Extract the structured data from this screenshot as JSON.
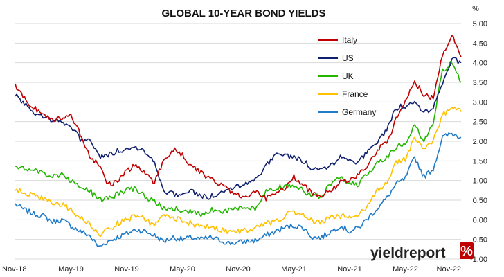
{
  "chart_data": {
    "type": "line",
    "title": "GLOBAL 10-YEAR BOND YIELDS",
    "y_unit": "%",
    "ylim": [
      -1.0,
      5.0
    ],
    "yticks": [
      "5.00",
      "4.50",
      "4.00",
      "3.50",
      "3.00",
      "2.50",
      "2.00",
      "1.50",
      "1.00",
      "0.50",
      "0.00",
      "-0.50",
      "-1.00"
    ],
    "x_tick_labels": [
      "Nov-18",
      "May-19",
      "Nov-19",
      "May-20",
      "Nov-20",
      "May-21",
      "Nov-21",
      "May-22",
      "Nov-22"
    ],
    "grid": "horizontal",
    "legend_position": "top-right",
    "x": [
      "Nov-18",
      "Dec-18",
      "Jan-19",
      "Feb-19",
      "Mar-19",
      "Apr-19",
      "May-19",
      "Jun-19",
      "Jul-19",
      "Aug-19",
      "Sep-19",
      "Oct-19",
      "Nov-19",
      "Dec-19",
      "Jan-20",
      "Feb-20",
      "Mar-20",
      "Apr-20",
      "May-20",
      "Jun-20",
      "Jul-20",
      "Aug-20",
      "Sep-20",
      "Oct-20",
      "Nov-20",
      "Dec-20",
      "Jan-21",
      "Feb-21",
      "Mar-21",
      "Apr-21",
      "May-21",
      "Jun-21",
      "Jul-21",
      "Aug-21",
      "Sep-21",
      "Oct-21",
      "Nov-21",
      "Dec-21",
      "Jan-22",
      "Feb-22",
      "Mar-22",
      "Apr-22",
      "May-22",
      "Jun-22",
      "Jul-22",
      "Aug-22",
      "Sep-22",
      "Oct-22",
      "Nov-22"
    ],
    "series": [
      {
        "name": "Italy",
        "color": "#c00000",
        "values": [
          3.4,
          3.1,
          2.85,
          2.7,
          2.55,
          2.6,
          2.65,
          2.2,
          1.6,
          1.4,
          0.9,
          0.95,
          1.25,
          1.4,
          1.2,
          0.95,
          1.5,
          1.8,
          1.65,
          1.35,
          1.2,
          1.05,
          0.9,
          0.75,
          0.65,
          0.58,
          0.7,
          0.55,
          0.7,
          0.8,
          1.1,
          0.9,
          0.65,
          0.62,
          0.75,
          0.95,
          1.0,
          1.15,
          1.4,
          1.8,
          1.95,
          2.55,
          3.0,
          3.5,
          3.2,
          3.1,
          4.2,
          4.7,
          4.15
        ]
      },
      {
        "name": "US",
        "color": "#0f1f6e",
        "values": [
          3.2,
          2.95,
          2.7,
          2.65,
          2.55,
          2.5,
          2.4,
          2.05,
          2.05,
          1.6,
          1.65,
          1.75,
          1.8,
          1.85,
          1.75,
          1.45,
          0.75,
          0.65,
          0.65,
          0.72,
          0.6,
          0.58,
          0.68,
          0.78,
          0.88,
          0.92,
          1.1,
          1.35,
          1.7,
          1.62,
          1.6,
          1.5,
          1.3,
          1.3,
          1.4,
          1.6,
          1.55,
          1.45,
          1.8,
          1.95,
          2.3,
          2.85,
          2.9,
          3.0,
          2.75,
          2.85,
          3.5,
          4.1,
          4.0
        ]
      },
      {
        "name": "UK",
        "color": "#22b600",
        "values": [
          1.4,
          1.3,
          1.25,
          1.2,
          1.1,
          1.15,
          1.0,
          0.85,
          0.75,
          0.5,
          0.55,
          0.65,
          0.75,
          0.8,
          0.6,
          0.45,
          0.3,
          0.3,
          0.25,
          0.2,
          0.15,
          0.25,
          0.2,
          0.25,
          0.3,
          0.3,
          0.3,
          0.7,
          0.8,
          0.85,
          0.85,
          0.75,
          0.6,
          0.6,
          0.95,
          1.05,
          0.95,
          0.9,
          1.2,
          1.45,
          1.6,
          1.85,
          1.95,
          2.4,
          2.0,
          2.5,
          3.8,
          4.0,
          3.5
        ]
      },
      {
        "name": "France",
        "color": "#ffc000",
        "values": [
          0.75,
          0.7,
          0.6,
          0.55,
          0.4,
          0.4,
          0.25,
          0.05,
          -0.1,
          -0.4,
          -0.25,
          -0.1,
          0.0,
          0.1,
          0.0,
          -0.15,
          0.1,
          0.05,
          0.0,
          -0.1,
          -0.2,
          -0.15,
          -0.25,
          -0.3,
          -0.3,
          -0.25,
          -0.2,
          -0.1,
          -0.05,
          0.1,
          0.2,
          0.1,
          -0.05,
          -0.05,
          0.05,
          0.1,
          0.05,
          0.1,
          0.4,
          0.75,
          0.95,
          1.45,
          1.55,
          2.1,
          1.8,
          2.0,
          2.65,
          2.9,
          2.75
        ]
      },
      {
        "name": "Germany",
        "color": "#1f7ac8",
        "values": [
          0.4,
          0.25,
          0.15,
          0.1,
          -0.05,
          0.0,
          -0.15,
          -0.3,
          -0.4,
          -0.7,
          -0.55,
          -0.45,
          -0.35,
          -0.25,
          -0.3,
          -0.4,
          -0.55,
          -0.45,
          -0.5,
          -0.45,
          -0.5,
          -0.45,
          -0.52,
          -0.6,
          -0.58,
          -0.55,
          -0.52,
          -0.4,
          -0.3,
          -0.2,
          -0.15,
          -0.2,
          -0.45,
          -0.45,
          -0.3,
          -0.15,
          -0.3,
          -0.2,
          0.05,
          0.3,
          0.55,
          0.9,
          1.05,
          1.6,
          1.1,
          1.3,
          2.1,
          2.2,
          2.1
        ]
      }
    ]
  },
  "brand": {
    "logo_text_dark": "yield",
    "logo_text_light": "report",
    "logo_symbol": "%"
  }
}
